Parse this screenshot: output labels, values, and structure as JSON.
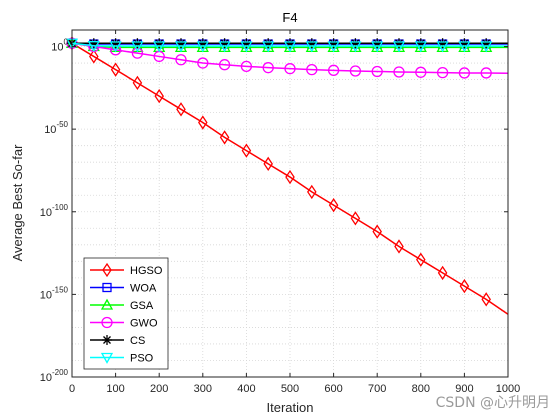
{
  "chart_data": {
    "type": "line",
    "title": "F4",
    "xlabel": "Iteration",
    "ylabel": "Average Best So-far",
    "y_scale": "log",
    "xlim": [
      0,
      1000
    ],
    "ylim_exponent": [
      -200,
      10
    ],
    "x_ticks": [
      0,
      100,
      200,
      300,
      400,
      500,
      600,
      700,
      800,
      900,
      1000
    ],
    "y_ticks_exponent": [
      0,
      -50,
      -100,
      -150,
      -200
    ],
    "y_tick_base": "10",
    "grid": true,
    "legend_position": "bottom-left",
    "series": [
      {
        "name": "HGSO",
        "color": "#ff0000",
        "marker": "diamond",
        "x": [
          0,
          50,
          100,
          150,
          200,
          250,
          300,
          350,
          400,
          450,
          500,
          550,
          600,
          650,
          700,
          750,
          800,
          850,
          900,
          950,
          1000
        ],
        "log10_y": [
          2,
          -6,
          -14,
          -22,
          -30,
          -38,
          -46,
          -55,
          -63,
          -71,
          -79,
          -88,
          -96,
          -104,
          -112,
          -121,
          -129,
          -137,
          -145,
          -153,
          -162
        ]
      },
      {
        "name": "WOA",
        "color": "#0000ff",
        "marker": "square",
        "x": [
          0,
          50,
          100,
          150,
          200,
          250,
          300,
          350,
          400,
          450,
          500,
          550,
          600,
          650,
          700,
          750,
          800,
          850,
          900,
          950,
          1000
        ],
        "log10_y": [
          2,
          1.5,
          1.5,
          1.5,
          1.5,
          1.5,
          1.5,
          1.5,
          1.5,
          1.5,
          1.5,
          1.5,
          1.5,
          1.5,
          1.5,
          1.5,
          1.5,
          1.5,
          1.5,
          1.5,
          1.5
        ]
      },
      {
        "name": "GSA",
        "color": "#00ff00",
        "marker": "triangle-up",
        "x": [
          0,
          50,
          100,
          150,
          200,
          250,
          300,
          350,
          400,
          450,
          500,
          550,
          600,
          650,
          700,
          750,
          800,
          850,
          900,
          950,
          1000
        ],
        "log10_y": [
          2,
          0,
          -0.5,
          -0.5,
          -0.5,
          -0.5,
          -0.5,
          -0.5,
          -0.5,
          -0.5,
          -0.5,
          -0.5,
          -0.5,
          -0.5,
          -0.5,
          -0.5,
          -0.5,
          -0.5,
          -0.5,
          -0.5,
          -0.5
        ]
      },
      {
        "name": "GWO",
        "color": "#ff00ff",
        "marker": "circle",
        "x": [
          0,
          50,
          100,
          150,
          200,
          250,
          300,
          350,
          400,
          450,
          500,
          550,
          600,
          650,
          700,
          750,
          800,
          850,
          900,
          950,
          1000
        ],
        "log10_y": [
          2,
          0,
          -2,
          -4,
          -6,
          -8,
          -10,
          -11,
          -12,
          -12.8,
          -13.4,
          -14,
          -14.4,
          -14.8,
          -15.1,
          -15.4,
          -15.6,
          -15.8,
          -16,
          -16,
          -16.2
        ]
      },
      {
        "name": "CS",
        "color": "#000000",
        "marker": "asterisk",
        "x": [
          0,
          50,
          100,
          150,
          200,
          250,
          300,
          350,
          400,
          450,
          500,
          550,
          600,
          650,
          700,
          750,
          800,
          850,
          900,
          950,
          1000
        ],
        "log10_y": [
          2,
          2,
          2,
          2,
          2,
          2,
          2,
          2,
          2,
          2,
          2,
          2,
          2,
          2,
          2,
          2,
          2,
          2,
          2,
          2,
          2
        ]
      },
      {
        "name": "PSO",
        "color": "#00ffff",
        "marker": "triangle-down",
        "x": [
          0,
          50,
          100,
          150,
          200,
          250,
          300,
          350,
          400,
          450,
          500,
          550,
          600,
          650,
          700,
          750,
          800,
          850,
          900,
          950,
          1000
        ],
        "log10_y": [
          2,
          0.5,
          0.3,
          0.3,
          0.3,
          0.3,
          0.3,
          0.3,
          0.3,
          0.3,
          0.3,
          0.3,
          0.3,
          0.3,
          0.3,
          0.3,
          0.3,
          0.3,
          0.3,
          0.3,
          0.3
        ]
      }
    ]
  },
  "watermark": "CSDN @心⁠升明月"
}
